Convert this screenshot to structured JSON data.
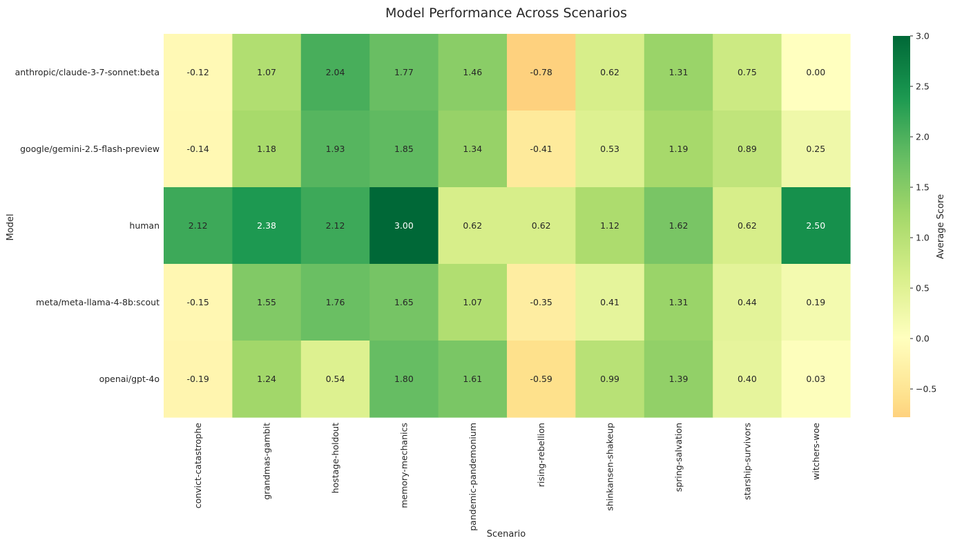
{
  "chart_data": {
    "type": "heatmap",
    "title": "Model Performance Across Scenarios",
    "xlabel": "Scenario",
    "ylabel": "Model",
    "colorbar_label": "Average Score",
    "x": [
      "convict-catastrophe",
      "grandmas-gambit",
      "hostage-holdout",
      "memory-mechanics",
      "pandemic-pandemonium",
      "rising-rebellion",
      "shinkansen-shakeup",
      "spring-salvation",
      "starship-survivors",
      "witchers-woe"
    ],
    "y": [
      "anthropic/claude-3-7-sonnet:beta",
      "google/gemini-2.5-flash-preview",
      "human",
      "meta/meta-llama-4-8b:scout",
      "openai/gpt-4o"
    ],
    "values": [
      [
        -0.12,
        1.07,
        2.04,
        1.77,
        1.46,
        -0.78,
        0.62,
        1.31,
        0.75,
        0.0
      ],
      [
        -0.14,
        1.18,
        1.93,
        1.85,
        1.34,
        -0.41,
        0.53,
        1.19,
        0.89,
        0.25
      ],
      [
        2.12,
        2.38,
        2.12,
        3.0,
        0.62,
        0.62,
        1.12,
        1.62,
        0.62,
        2.5
      ],
      [
        -0.15,
        1.55,
        1.76,
        1.65,
        1.07,
        -0.35,
        0.41,
        1.31,
        0.44,
        0.19
      ],
      [
        -0.19,
        1.24,
        0.54,
        1.8,
        1.61,
        -0.59,
        0.99,
        1.39,
        0.4,
        0.03
      ]
    ],
    "value_format": "2 decimals",
    "colormap": "RdYlGn (centered at 0)",
    "vmin": -0.78,
    "vmax": 3.0,
    "colorbar_ticks": [
      3.0,
      2.5,
      2.0,
      1.5,
      1.0,
      0.5,
      0.0,
      -0.5
    ],
    "colorbar_tick_labels": [
      "3.0",
      "2.5",
      "2.0",
      "1.5",
      "1.0",
      "0.5",
      "0.0",
      "−0.5"
    ],
    "grid": false,
    "legend": "colorbar-right"
  }
}
